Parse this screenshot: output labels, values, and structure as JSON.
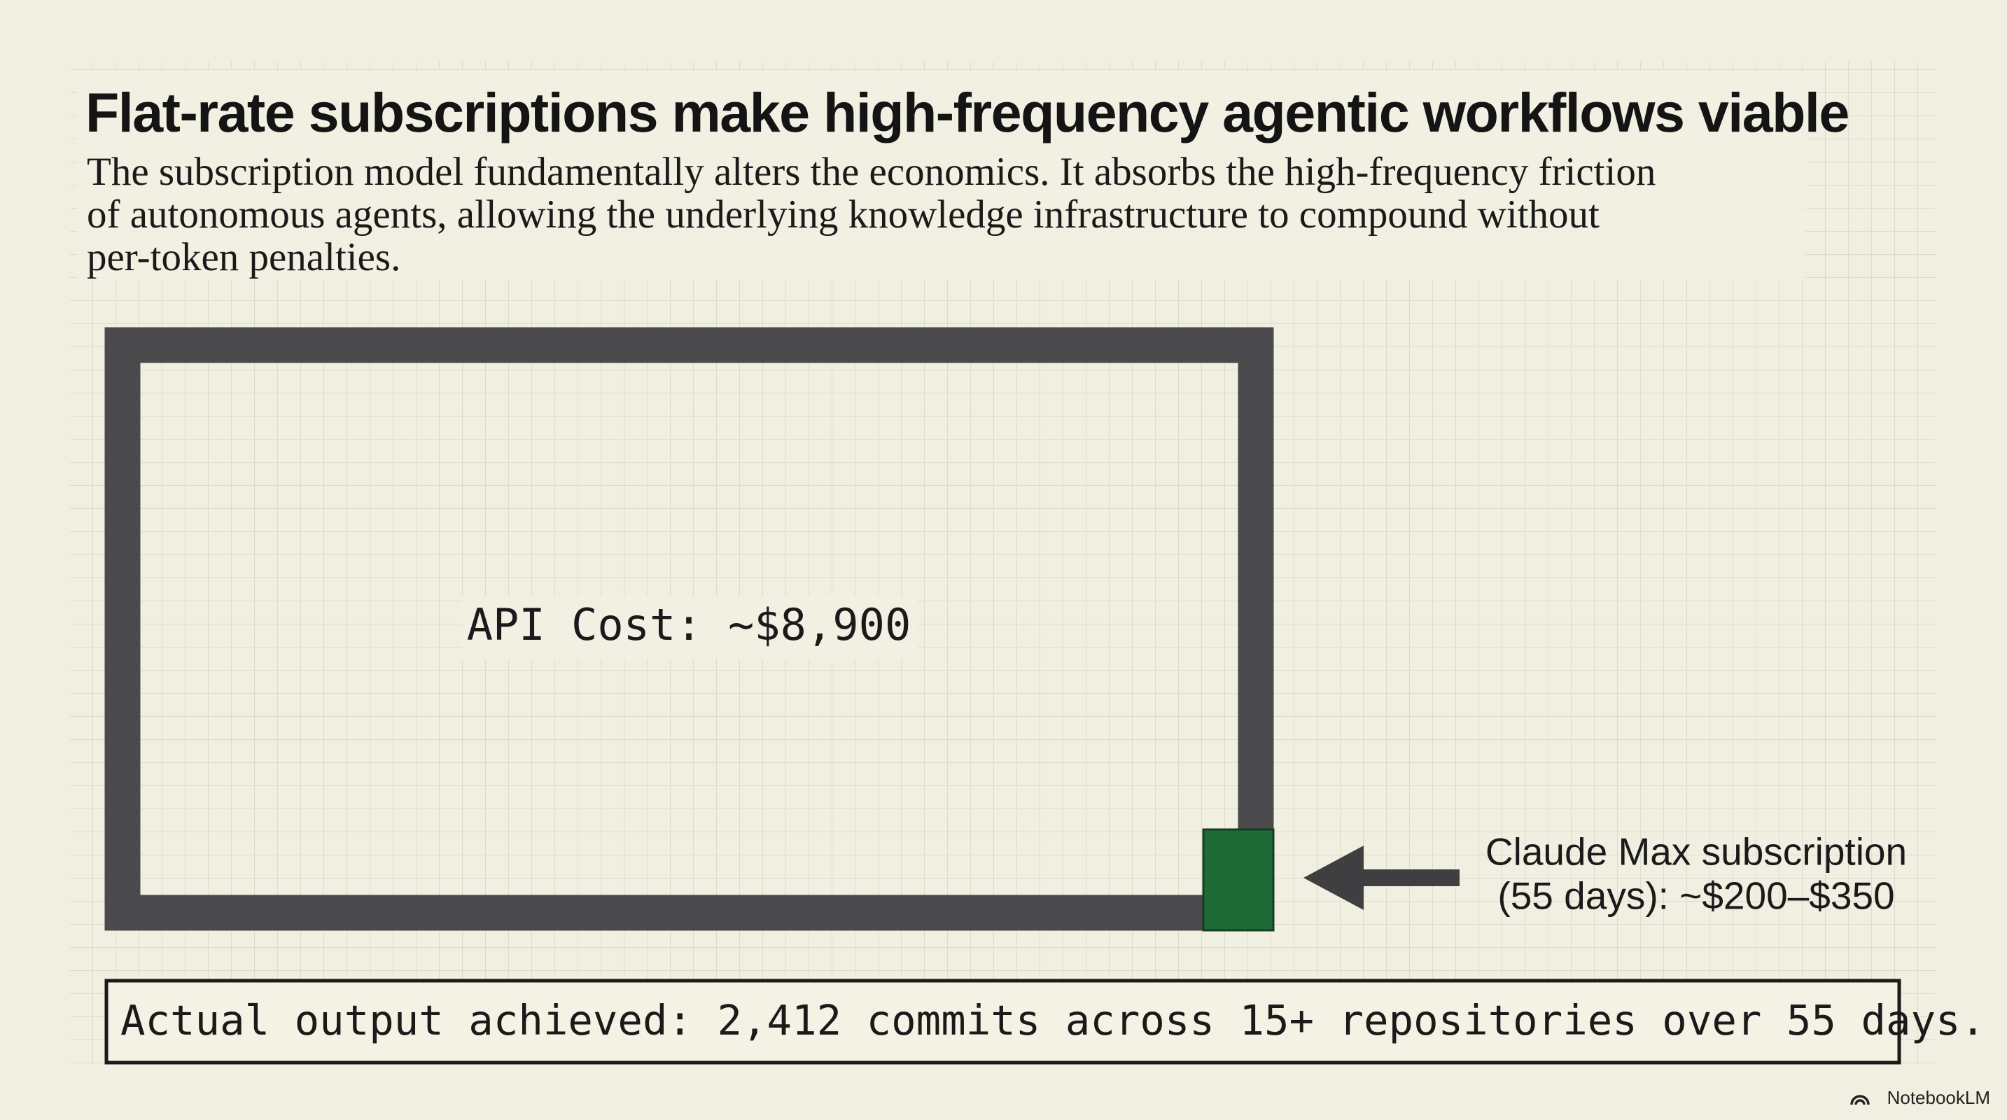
{
  "header": {
    "title": "Flat-rate subscriptions make high-frequency agentic workflows viable",
    "subtitle_lines": [
      "The subscription model fundamentally alters the economics. It absorbs the high-frequency friction",
      "of autonomous agents, allowing the underlying knowledge infrastructure to compound without",
      "per-token penalties."
    ]
  },
  "diagram": {
    "api_cost_label": "API Cost: ~$8,900",
    "subscription_label_lines": [
      "Claude Max subscription",
      "(55 days): ~$200–$350"
    ]
  },
  "footer": {
    "text": "Actual output achieved: 2,412 commits across 15+ repositories over 55 days."
  },
  "watermark": "NotebookLM"
}
